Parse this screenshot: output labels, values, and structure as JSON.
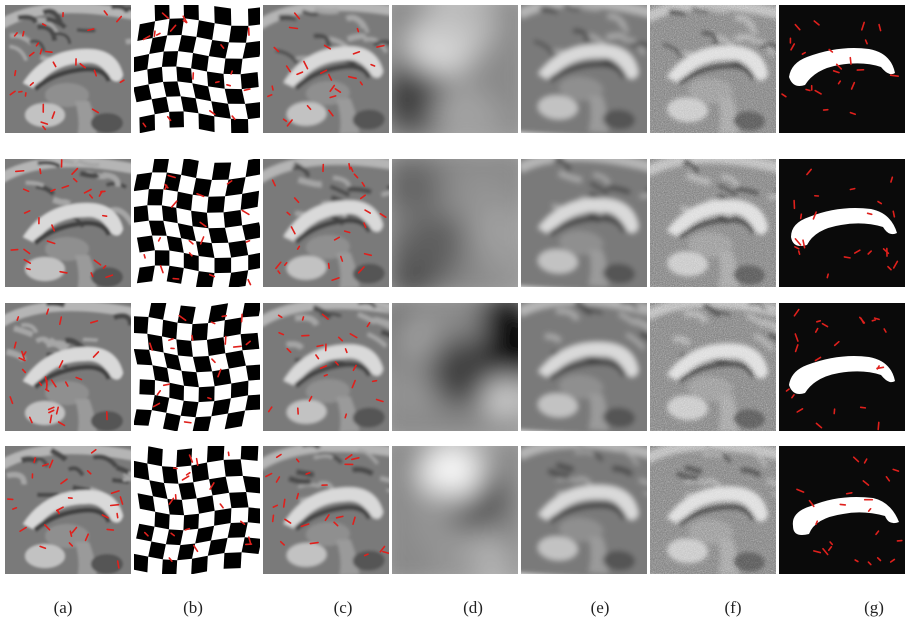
{
  "figure": {
    "captions": [
      "(a)",
      "(b)",
      "(c)",
      "(d)",
      "(e)",
      "(f)",
      "(g)"
    ],
    "rows": 4,
    "columns": [
      {
        "key": "a",
        "content": "mri"
      },
      {
        "key": "b",
        "content": "checkerboard"
      },
      {
        "key": "c",
        "content": "mri-warped"
      },
      {
        "key": "d",
        "content": "blur-field"
      },
      {
        "key": "e",
        "content": "mri-smooth"
      },
      {
        "key": "f",
        "content": "mri-noisy"
      },
      {
        "key": "g",
        "content": "mask"
      }
    ],
    "colors": {
      "arrow": "#e0201c",
      "background": "#ffffff",
      "mask_bg": "#0a0a0a",
      "mask_fg": "#ffffff"
    }
  }
}
